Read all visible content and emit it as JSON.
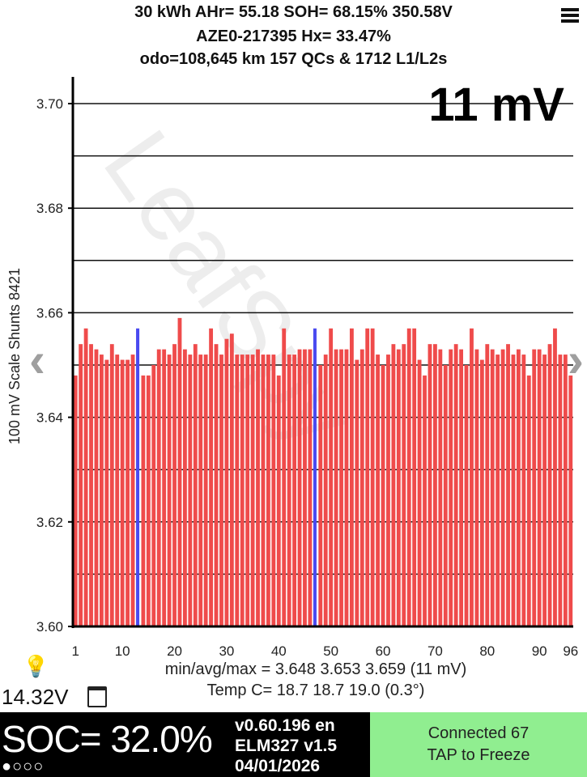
{
  "header": {
    "line1": "30 kWh  AHr= 55.18  SOH= 68.15%   350.58V",
    "line2": "AZE0-217395   Hx= 33.47%",
    "line3": "odo=108,645 km 157 QCs & 1712 L1/L2s"
  },
  "menu_icon": "hamburger-menu-icon",
  "spread_label": "11 mV",
  "watermark": "LeafSpy",
  "nav": {
    "left_icon": "chevron-left-icon",
    "right_icon": "chevron-right-icon"
  },
  "chart_data": {
    "type": "bar",
    "ylabel": "100 mV Scale  Shunts 8421",
    "ylim": [
      3.6,
      3.705
    ],
    "y_ticks": [
      "3.60",
      "3.62",
      "3.64",
      "3.66",
      "3.68",
      "3.70"
    ],
    "x_ticks": [
      "1",
      "10",
      "20",
      "30",
      "40",
      "50",
      "60",
      "70",
      "80",
      "90",
      "96"
    ],
    "grid": true,
    "bar_color": "#ef4b4b",
    "highlight_color": "#4a4af0",
    "highlight_cells": [
      13,
      47
    ],
    "values": [
      3.648,
      3.654,
      3.657,
      3.654,
      3.653,
      3.652,
      3.651,
      3.654,
      3.652,
      3.651,
      3.651,
      3.652,
      3.657,
      3.648,
      3.648,
      3.65,
      3.653,
      3.653,
      3.652,
      3.654,
      3.659,
      3.653,
      3.652,
      3.654,
      3.652,
      3.652,
      3.657,
      3.654,
      3.652,
      3.655,
      3.656,
      3.652,
      3.652,
      3.652,
      3.652,
      3.653,
      3.652,
      3.652,
      3.652,
      3.648,
      3.657,
      3.652,
      3.652,
      3.653,
      3.653,
      3.653,
      3.657,
      3.65,
      3.652,
      3.657,
      3.653,
      3.653,
      3.653,
      3.657,
      3.651,
      3.653,
      3.657,
      3.657,
      3.652,
      3.65,
      3.652,
      3.654,
      3.653,
      3.654,
      3.657,
      3.657,
      3.651,
      3.648,
      3.654,
      3.654,
      3.653,
      3.65,
      3.653,
      3.654,
      3.653,
      3.65,
      3.657,
      3.653,
      3.651,
      3.654,
      3.653,
      3.652,
      3.653,
      3.654,
      3.652,
      3.653,
      3.652,
      3.648,
      3.653,
      3.653,
      3.652,
      3.654,
      3.657,
      3.652,
      3.652,
      3.648
    ]
  },
  "stats": {
    "voltage": "min/avg/max = 3.648 3.653 3.659  (11 mV)",
    "temp": "Temp C= 18.7  18.7  19.0  (0.3°)"
  },
  "aux_voltage": "14.32V",
  "bulb_icon": "lightbulb-icon",
  "calendar_icon": "calendar-icon",
  "soc": "SOC= 32.0%",
  "dots": "●○○○",
  "version": {
    "line1": "v0.60.196 en",
    "line2": "ELM327 v1.5",
    "line3": "04/01/2026"
  },
  "status": {
    "line1": "Connected 67",
    "line2": "TAP to Freeze"
  },
  "colors": {
    "status_bg": "#90ee90",
    "bar_bg": "#000000"
  }
}
